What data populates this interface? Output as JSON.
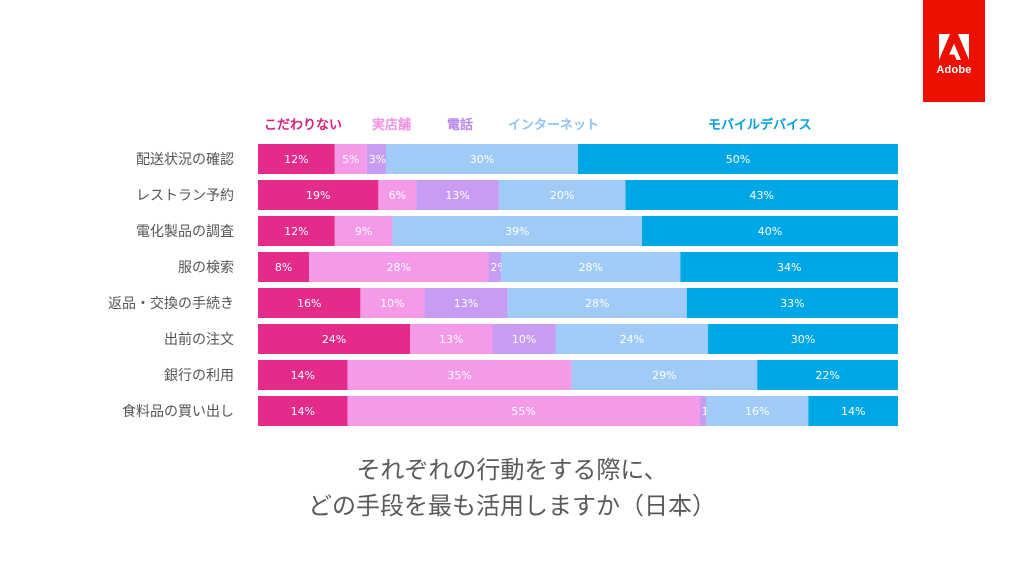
{
  "brand": {
    "name": "Adobe",
    "color": "#eb1000"
  },
  "subtitle": {
    "line1": "それぞれの行動をする際に、",
    "line2": "どの手段を最も活用しますか（日本）"
  },
  "chart_data": {
    "type": "bar",
    "orientation": "horizontal",
    "stacked": true,
    "percent_stacked": true,
    "categories": [
      "配送状況の確認",
      "レストラン予約",
      "電化製品の調査",
      "服の検索",
      "返品・交換の手続き",
      "出前の注文",
      "銀行の利用",
      "食料品の買い出し"
    ],
    "series": [
      {
        "name": "こだわりない",
        "color": "#e52b8a",
        "legend_color": "#d6217d",
        "values": [
          12,
          19,
          12,
          8,
          16,
          24,
          14,
          14
        ]
      },
      {
        "name": "実店舗",
        "color": "#f59ae8",
        "legend_color": "#f291e4",
        "values": [
          5,
          6,
          9,
          28,
          10,
          13,
          35,
          55
        ]
      },
      {
        "name": "電話",
        "color": "#c79cf2",
        "legend_color": "#b98ae8",
        "values": [
          3,
          13,
          0,
          2,
          13,
          10,
          0,
          1
        ]
      },
      {
        "name": "インターネット",
        "color": "#9fcbf6",
        "legend_color": "#8fc3f2",
        "values": [
          30,
          20,
          39,
          28,
          28,
          24,
          29,
          16
        ]
      },
      {
        "name": "モバイルデバイス",
        "color": "#00a7e6",
        "legend_color": "#009fdb",
        "values": [
          50,
          43,
          40,
          34,
          33,
          30,
          22,
          14
        ]
      }
    ],
    "value_suffix": "%",
    "legend_position": "top",
    "grid": false
  }
}
